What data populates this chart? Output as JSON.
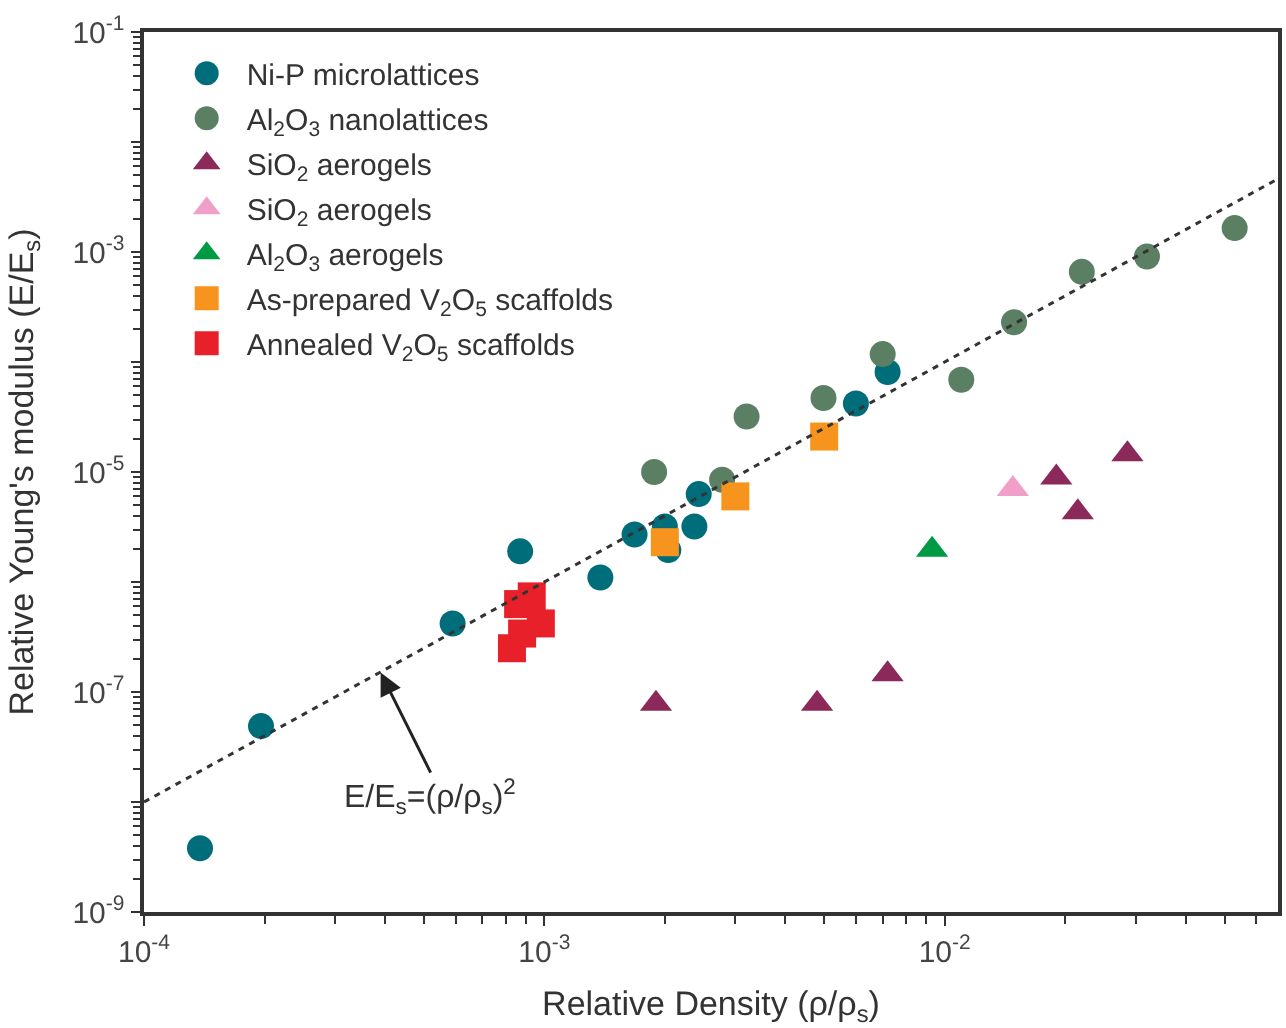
{
  "chart_data": {
    "type": "scatter",
    "xlabel": "Relative Density (ρ/ρ$_{s}$)",
    "ylabel": "Relative Young's modulus (E/E$_{s}$)",
    "log": "xy",
    "legend": "top left",
    "xlim": [
      0.0001,
      0.068
    ],
    "ylim": [
      1e-09,
      0.1
    ],
    "xticks": [
      {
        "value": 0.0001,
        "label": "10$^{-4}$"
      },
      {
        "value": 0.001,
        "label": "10$^{-3}$"
      },
      {
        "value": 0.01,
        "label": "10$^{-2}$"
      }
    ],
    "yticks": [
      {
        "value": 1e-09,
        "label": "10$^{-9}$"
      },
      {
        "value": 1e-08,
        "label": null
      },
      {
        "value": 1e-07,
        "label": "10$^{-7}$"
      },
      {
        "value": 1e-06,
        "label": null
      },
      {
        "value": 1e-05,
        "label": "10$^{-5}$"
      },
      {
        "value": 0.0001,
        "label": null
      },
      {
        "value": 0.001,
        "label": "10$^{-3}$"
      },
      {
        "value": 0.01,
        "label": null
      },
      {
        "value": 0.1,
        "label": "10$^{-1}$"
      }
    ],
    "series": [
      {
        "name": "Ni-P microlattices",
        "color": "#006d7a",
        "marker": "circle",
        "x": [
          0.000138,
          0.000196,
          0.00059,
          0.00087,
          0.00138,
          0.00168,
          0.002,
          0.00204,
          0.00237,
          0.00243,
          0.006,
          0.0072
        ],
        "values": [
          3.8e-09,
          4.9e-08,
          4.2e-07,
          1.9e-06,
          1.1e-06,
          2.7e-06,
          3.2e-06,
          1.95e-06,
          3.2e-06,
          6.3e-06,
          4.2e-05,
          8.1e-05
        ]
      },
      {
        "name": "Al$_{2}$O$_{3}$ nanolattices",
        "color": "#5a7f63",
        "marker": "circle",
        "x": [
          0.00188,
          0.00278,
          0.0032,
          0.00498,
          0.007,
          0.011,
          0.0149,
          0.022,
          0.032,
          0.053
        ],
        "values": [
          1e-05,
          8.5e-06,
          3.2e-05,
          4.7e-05,
          0.000118,
          6.9e-05,
          0.00023,
          0.00066,
          0.00091,
          0.00165
        ]
      },
      {
        "name": "SiO$_{2}$ aerogels",
        "color": "#8b2a5a",
        "marker": "triangle",
        "x": [
          0.0019,
          0.0048,
          0.0072,
          0.0215,
          0.019,
          0.0286
        ],
        "values": [
          7.8e-08,
          7.8e-08,
          1.45e-07,
          4.3e-06,
          8.9e-06,
          1.45e-05
        ]
      },
      {
        "name": "SiO$_{2}$ aerogels",
        "color": "#f0a0c8",
        "marker": "triangle",
        "x": [
          0.0148
        ],
        "values": [
          7e-06
        ]
      },
      {
        "name": "Al$_{2}$O$_{3}$ aerogels",
        "color": "#009944",
        "marker": "triangle",
        "x": [
          0.0093
        ],
        "values": [
          1.96e-06
        ]
      },
      {
        "name": "As-prepared V$_{2}$O$_{5}$ scaffolds",
        "color": "#f7941d",
        "marker": "square",
        "x": [
          0.002,
          0.003,
          0.005
        ],
        "values": [
          2.3e-06,
          6e-06,
          2.1e-05
        ]
      },
      {
        "name": "Annealed V$_{2}$O$_{5}$ scaffolds",
        "color": "#e8202a",
        "marker": "square",
        "x": [
          0.00086,
          0.00093,
          0.00098,
          0.00088,
          0.00083
        ],
        "values": [
          6.3e-07,
          7.4e-07,
          4.2e-07,
          3.4e-07,
          2.5e-07
        ]
      },
      {
        "type": "line",
        "color": "#333333",
        "line_style": "dotted",
        "marker": "none",
        "x": [
          0.0001,
          0.068
        ],
        "values": [
          1e-08,
          0.004624
        ]
      }
    ],
    "annotations": [
      {
        "text": "E/E$_{s}$=(ρ/ρ$_{s}$)$^{2}$",
        "x": 0.00039,
        "y": 1.5e-07
      }
    ]
  }
}
